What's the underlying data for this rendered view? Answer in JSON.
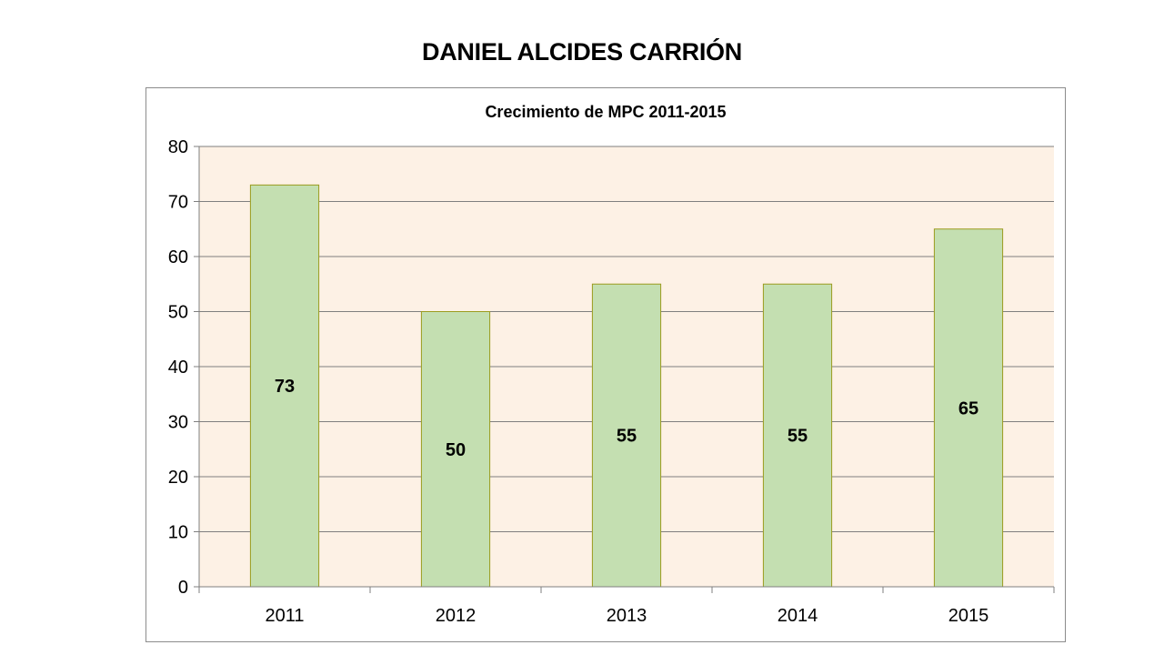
{
  "slide": {
    "title": "DANIEL ALCIDES CARRIÓN"
  },
  "colors": {
    "plot_background": "#fdf1e5",
    "bar_fill": "#c4dfb1",
    "bar_stroke": "#9b9b1f",
    "gridline": "#7f7f7f",
    "text": "#000000"
  },
  "chart_data": {
    "type": "bar",
    "title": "Crecimiento de MPC 2011-2015",
    "xlabel": "",
    "ylabel": "",
    "categories": [
      "2011",
      "2012",
      "2013",
      "2014",
      "2015"
    ],
    "values": [
      73,
      50,
      55,
      55,
      65
    ],
    "data_labels": [
      "73",
      "50",
      "55",
      "55",
      "65"
    ],
    "ylim": [
      0,
      80
    ],
    "y_ticks": [
      0,
      10,
      20,
      30,
      40,
      50,
      60,
      70,
      80
    ],
    "grid": true,
    "legend": "none",
    "data_label_position": "center"
  }
}
